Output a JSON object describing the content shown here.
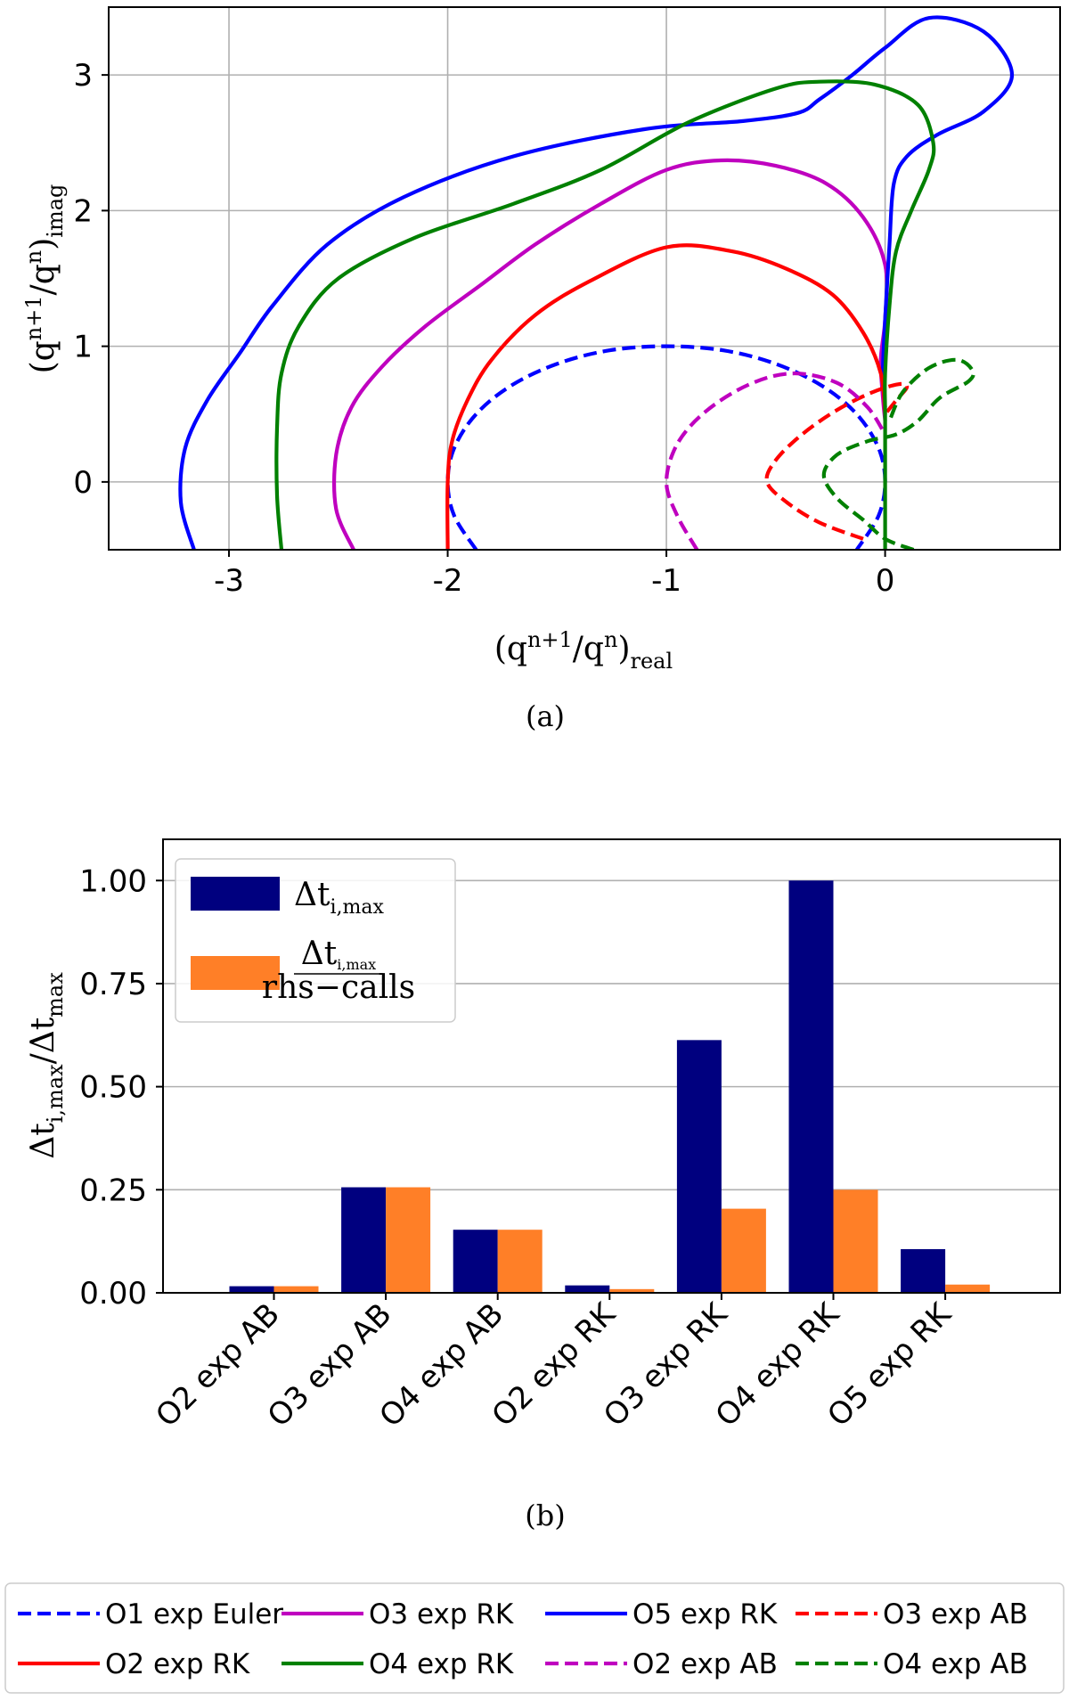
{
  "chart_data": [
    {
      "type": "line",
      "title": "",
      "xlabel": "(q^{n+1}/q^n)_real",
      "ylabel": "(q^{n+1}/q^n)_imag",
      "xlim": [
        -3.55,
        0.8
      ],
      "ylim": [
        -0.5,
        3.5
      ],
      "grid": true,
      "xticks": [
        "-3",
        "-2",
        "-1",
        "0"
      ],
      "yticks": [
        "0",
        "1",
        "2",
        "3"
      ],
      "caption": "(a)",
      "series": [
        {
          "name": "O1 exp Euler",
          "color": "#0000ff",
          "dash": true,
          "points": [
            [
              -1.87,
              -0.5
            ],
            [
              -1.97,
              -0.25
            ],
            [
              -2.0,
              0
            ],
            [
              -1.97,
              0.25
            ],
            [
              -1.87,
              0.5
            ],
            [
              -1.71,
              0.71
            ],
            [
              -1.5,
              0.87
            ],
            [
              -1.26,
              0.97
            ],
            [
              -1.0,
              1.0
            ],
            [
              -0.74,
              0.97
            ],
            [
              -0.5,
              0.87
            ],
            [
              -0.29,
              0.71
            ],
            [
              -0.13,
              0.5
            ],
            [
              -0.03,
              0.25
            ],
            [
              0.0,
              0
            ],
            [
              -0.03,
              -0.25
            ],
            [
              -0.13,
              -0.5
            ]
          ]
        },
        {
          "name": "O3 exp RK",
          "color": "#bf00bf",
          "dash": false,
          "points": [
            [
              -2.43,
              -0.5
            ],
            [
              -2.51,
              -0.2
            ],
            [
              -2.51,
              0.2
            ],
            [
              -2.44,
              0.55
            ],
            [
              -2.3,
              0.85
            ],
            [
              -2.1,
              1.15
            ],
            [
              -1.85,
              1.45
            ],
            [
              -1.6,
              1.75
            ],
            [
              -1.3,
              2.05
            ],
            [
              -1.0,
              2.3
            ],
            [
              -0.75,
              2.37
            ],
            [
              -0.5,
              2.33
            ],
            [
              -0.27,
              2.2
            ],
            [
              -0.1,
              1.95
            ],
            [
              0.0,
              1.6
            ],
            [
              0.0,
              1.2
            ],
            [
              -0.02,
              0.9
            ],
            [
              -0.01,
              0.62
            ],
            [
              0.0,
              0.45
            ]
          ]
        },
        {
          "name": "O5 exp RK",
          "color": "#0000ff",
          "dash": false,
          "points": [
            [
              -3.16,
              -0.5
            ],
            [
              -3.22,
              -0.15
            ],
            [
              -3.2,
              0.25
            ],
            [
              -3.1,
              0.6
            ],
            [
              -2.95,
              0.95
            ],
            [
              -2.8,
              1.3
            ],
            [
              -2.55,
              1.75
            ],
            [
              -2.2,
              2.1
            ],
            [
              -1.7,
              2.4
            ],
            [
              -1.1,
              2.6
            ],
            [
              -0.65,
              2.66
            ],
            [
              -0.4,
              2.72
            ],
            [
              -0.3,
              2.82
            ],
            [
              -0.15,
              3.0
            ],
            [
              0.0,
              3.2
            ],
            [
              0.2,
              3.42
            ],
            [
              0.45,
              3.32
            ],
            [
              0.58,
              3.0
            ],
            [
              0.45,
              2.73
            ],
            [
              0.24,
              2.56
            ],
            [
              0.1,
              2.4
            ],
            [
              0.04,
              2.2
            ],
            [
              0.02,
              1.75
            ],
            [
              0.0,
              1.2
            ],
            [
              -0.01,
              0.8
            ],
            [
              0.0,
              0.55
            ]
          ]
        },
        {
          "name": "O3 exp AB",
          "color": "#ff0000",
          "dash": true,
          "points": [
            [
              -0.1,
              -0.42
            ],
            [
              -0.3,
              -0.3
            ],
            [
              -0.45,
              -0.15
            ],
            [
              -0.54,
              0
            ],
            [
              -0.5,
              0.16
            ],
            [
              -0.38,
              0.35
            ],
            [
              -0.22,
              0.53
            ],
            [
              -0.06,
              0.66
            ],
            [
              0.06,
              0.72
            ],
            [
              0.1,
              0.7
            ],
            [
              0.05,
              0.6
            ],
            [
              0.0,
              0.5
            ]
          ]
        },
        {
          "name": "O2 exp RK",
          "color": "#ff0000",
          "dash": false,
          "points": [
            [
              -2.0,
              -0.5
            ],
            [
              -2.0,
              0
            ],
            [
              -1.98,
              0.3
            ],
            [
              -1.91,
              0.6
            ],
            [
              -1.8,
              0.9
            ],
            [
              -1.6,
              1.23
            ],
            [
              -1.35,
              1.48
            ],
            [
              -1.0,
              1.73
            ],
            [
              -0.7,
              1.7
            ],
            [
              -0.45,
              1.57
            ],
            [
              -0.24,
              1.38
            ],
            [
              -0.1,
              1.1
            ],
            [
              -0.02,
              0.8
            ],
            [
              0.0,
              0.5
            ]
          ]
        },
        {
          "name": "O4 exp RK",
          "color": "#008000",
          "dash": false,
          "points": [
            [
              -2.76,
              -0.5
            ],
            [
              -2.78,
              -0.1
            ],
            [
              -2.78,
              0.4
            ],
            [
              -2.76,
              0.8
            ],
            [
              -2.68,
              1.15
            ],
            [
              -2.5,
              1.5
            ],
            [
              -2.15,
              1.8
            ],
            [
              -1.7,
              2.05
            ],
            [
              -1.3,
              2.3
            ],
            [
              -0.9,
              2.65
            ],
            [
              -0.5,
              2.9
            ],
            [
              -0.3,
              2.95
            ],
            [
              -0.05,
              2.93
            ],
            [
              0.15,
              2.78
            ],
            [
              0.22,
              2.5
            ],
            [
              0.2,
              2.3
            ],
            [
              0.12,
              2.0
            ],
            [
              0.05,
              1.7
            ],
            [
              0.02,
              1.3
            ],
            [
              0.0,
              0.8
            ],
            [
              0.0,
              0.5
            ],
            [
              0.0,
              0
            ],
            [
              0.0,
              -0.5
            ]
          ]
        },
        {
          "name": "O2 exp AB",
          "color": "#bf00bf",
          "dash": true,
          "points": [
            [
              -0.86,
              -0.5
            ],
            [
              -0.95,
              -0.25
            ],
            [
              -1.0,
              0
            ],
            [
              -0.95,
              0.28
            ],
            [
              -0.82,
              0.52
            ],
            [
              -0.62,
              0.72
            ],
            [
              -0.42,
              0.8
            ],
            [
              -0.22,
              0.73
            ],
            [
              -0.08,
              0.55
            ],
            [
              0.0,
              0.35
            ]
          ]
        },
        {
          "name": "O4 exp AB",
          "color": "#008000",
          "dash": true,
          "points": [
            [
              0.13,
              -0.5
            ],
            [
              0.0,
              -0.42
            ],
            [
              -0.1,
              -0.28
            ],
            [
              -0.22,
              -0.12
            ],
            [
              -0.28,
              0.05
            ],
            [
              -0.22,
              0.2
            ],
            [
              -0.08,
              0.3
            ],
            [
              0.05,
              0.35
            ],
            [
              0.15,
              0.45
            ],
            [
              0.25,
              0.62
            ],
            [
              0.38,
              0.74
            ],
            [
              0.4,
              0.82
            ],
            [
              0.33,
              0.9
            ],
            [
              0.2,
              0.84
            ],
            [
              0.08,
              0.66
            ],
            [
              0.02,
              0.45
            ]
          ]
        }
      ]
    },
    {
      "type": "bar",
      "title": "",
      "xlabel": "",
      "ylabel": "Δt_{i,max}/Δt_max",
      "ylim": [
        0,
        1.1
      ],
      "grid": true,
      "yticks": [
        "0.00",
        "0.25",
        "0.50",
        "0.75",
        "1.00"
      ],
      "categories": [
        "O2 exp AB",
        "O3 exp AB",
        "O4 exp AB",
        "O2 exp RK",
        "O3 exp RK",
        "O4 exp RK",
        "O5 exp RK"
      ],
      "series": [
        {
          "name": "Δt_{i,max}",
          "color": "#00007f",
          "values": [
            0.016,
            0.256,
            0.153,
            0.018,
            0.613,
            1.0,
            0.106
          ]
        },
        {
          "name": "Δt_{i,max} / rhs−calls",
          "color": "#ff7f27",
          "values": [
            0.016,
            0.256,
            0.153,
            0.009,
            0.204,
            0.25,
            0.02
          ]
        }
      ],
      "caption": "(b)"
    }
  ],
  "axis_text": {
    "a_xlabel": [
      "(q",
      "n+1",
      "/q",
      "n",
      ")",
      "real"
    ],
    "a_ylabel": [
      "(q",
      "n+1",
      "/q",
      "n",
      ")",
      "imag"
    ],
    "b_ylabel": [
      "Δt",
      "i,max",
      "/Δt",
      "max"
    ],
    "leg_b1": [
      "Δt",
      "i,max"
    ],
    "leg_b2_num": [
      "Δt",
      "i,max"
    ],
    "leg_b2_den": "rhs−calls"
  },
  "legend": [
    {
      "label": "O1 exp Euler",
      "color": "#0000ff",
      "dash": true
    },
    {
      "label": "O3 exp RK",
      "color": "#bf00bf",
      "dash": false
    },
    {
      "label": "O5 exp RK",
      "color": "#0000ff",
      "dash": false
    },
    {
      "label": "O3 exp AB",
      "color": "#ff0000",
      "dash": true
    },
    {
      "label": "O2 exp RK",
      "color": "#ff0000",
      "dash": false
    },
    {
      "label": "O4 exp RK",
      "color": "#008000",
      "dash": false
    },
    {
      "label": "O2 exp AB",
      "color": "#bf00bf",
      "dash": true
    },
    {
      "label": "O4 exp AB",
      "color": "#008000",
      "dash": true
    }
  ]
}
